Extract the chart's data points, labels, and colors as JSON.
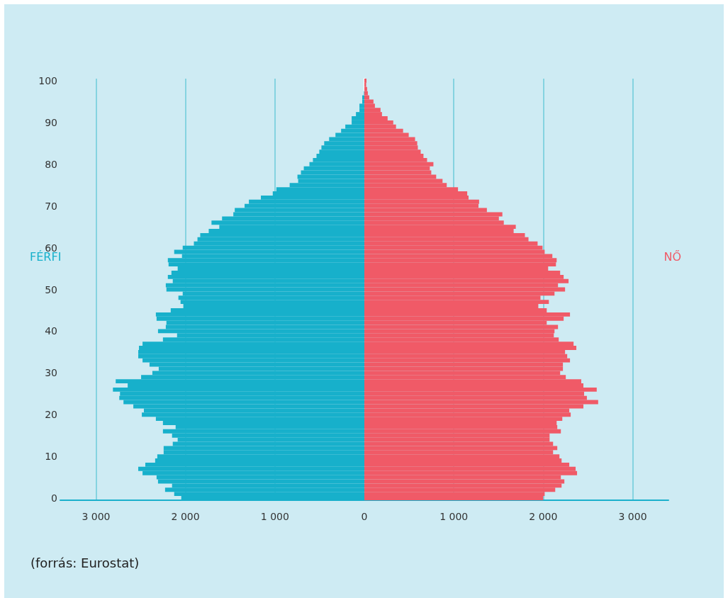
{
  "chart_data": {
    "type": "bar",
    "orientation": "horizontal",
    "categories": [
      "100",
      null,
      null,
      null,
      null,
      null,
      null,
      null,
      null,
      null,
      "90",
      null,
      null,
      null,
      null,
      null,
      null,
      null,
      null,
      null,
      "80",
      null,
      null,
      null,
      null,
      null,
      null,
      null,
      null,
      null,
      "70",
      null,
      null,
      null,
      null,
      null,
      null,
      null,
      null,
      null,
      "60",
      null,
      null,
      null,
      null,
      null,
      null,
      null,
      null,
      null,
      "50",
      null,
      null,
      null,
      null,
      null,
      null,
      null,
      null,
      null,
      "40",
      null,
      null,
      null,
      null,
      null,
      null,
      null,
      null,
      null,
      "30",
      null,
      null,
      null,
      null,
      null,
      null,
      null,
      null,
      null,
      "20",
      null,
      null,
      null,
      null,
      null,
      null,
      null,
      null,
      null,
      "10",
      null,
      null,
      null,
      null,
      null,
      null,
      null,
      null,
      null,
      "0"
    ],
    "series": [
      {
        "name": "FÉRFI",
        "color": "#17b0cb",
        "values": [
          null,
          null,
          null,
          -5,
          -24,
          -24,
          -55,
          -55,
          -94,
          -142,
          -142,
          -213,
          -260,
          -323,
          -394,
          -449,
          -480,
          -504,
          -535,
          -575,
          -614,
          -677,
          -709,
          -748,
          -740,
          -835,
          -984,
          -1024,
          -1157,
          -1291,
          -1339,
          -1449,
          -1465,
          -1591,
          -1709,
          -1622,
          -1740,
          -1835,
          -1866,
          -1906,
          -2031,
          -2126,
          -2039,
          -2197,
          -2189,
          -2087,
          -2157,
          -2197,
          -2142,
          -2220,
          -2213,
          -2031,
          -2079,
          -2055,
          -2024,
          -2165,
          -2331,
          -2323,
          -2213,
          -2220,
          -2307,
          -2094,
          -2252,
          -2480,
          -2520,
          -2528,
          -2528,
          -2480,
          -2402,
          -2299,
          -2370,
          -2496,
          -2780,
          -2646,
          -2811,
          -2732,
          -2740,
          -2693,
          -2583,
          -2465,
          -2488,
          -2331,
          -2252,
          -2110,
          -2252,
          -2150,
          -2087,
          -2142,
          -2244,
          -2244,
          -2315,
          -2339,
          -2449,
          -2528,
          -2480,
          -2323,
          -2307,
          -2150,
          -2228,
          -2126,
          -2047
        ]
      },
      {
        "name": "NŐ",
        "color": "#f05a67",
        "values": [
          24,
          20,
          31,
          39,
          55,
          102,
          118,
          181,
          197,
          260,
          323,
          354,
          433,
          496,
          567,
          591,
          598,
          630,
          661,
          701,
          772,
          732,
          748,
          803,
          874,
          921,
          1047,
          1150,
          1165,
          1283,
          1276,
          1370,
          1543,
          1504,
          1559,
          1693,
          1669,
          1795,
          1835,
          1937,
          1992,
          2016,
          2102,
          2150,
          2142,
          2055,
          2189,
          2228,
          2283,
          2165,
          2244,
          2126,
          1969,
          2063,
          1945,
          2039,
          2299,
          2228,
          2039,
          2165,
          2126,
          2118,
          2173,
          2339,
          2370,
          2244,
          2268,
          2299,
          2220,
          2220,
          2189,
          2252,
          2425,
          2449,
          2598,
          2457,
          2488,
          2614,
          2449,
          2291,
          2307,
          2213,
          2150,
          2157,
          2197,
          2071,
          2071,
          2110,
          2157,
          2110,
          2181,
          2205,
          2291,
          2362,
          2378,
          2197,
          2236,
          2205,
          2134,
          2016,
          2000
        ]
      }
    ],
    "xlim": [
      -3400,
      3400
    ],
    "xticks": [
      {
        "value": -3000,
        "label": "3 000"
      },
      {
        "value": -2000,
        "label": "2 000"
      },
      {
        "value": -1000,
        "label": "1 000"
      },
      0,
      {
        "value": 1000,
        "label": "1 000"
      },
      {
        "value": 2000,
        "label": "2 000"
      },
      {
        "value": 3000,
        "label": "3 000"
      }
    ],
    "grid": "x",
    "legend": false,
    "stacked": true,
    "annotations": [
      "(forrás: Eurostat)"
    ]
  }
}
